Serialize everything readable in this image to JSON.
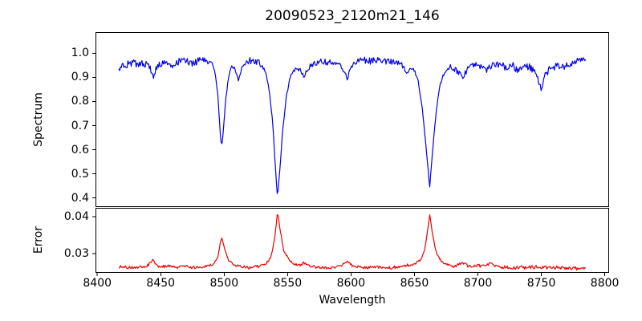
{
  "figure": {
    "title": "20090523_2120m21_146",
    "background_color": "#ffffff",
    "text_color": "#000000",
    "spine_color": "#000000"
  },
  "chart_data": [
    {
      "type": "line",
      "panel": "top",
      "title": "20090523_2120m21_146",
      "ylabel": "Spectrum",
      "series_name": "spectrum",
      "line_color": "#0000ee",
      "grid": false,
      "legend": "none",
      "xlim": [
        8398.6,
        8803.4
      ],
      "ylim": [
        0.362,
        1.088
      ],
      "yticks": [
        {
          "value": 0.4,
          "label": "0.4"
        },
        {
          "value": 0.5,
          "label": "0.5"
        },
        {
          "value": 0.6,
          "label": "0.6"
        },
        {
          "value": 0.7,
          "label": "0.7"
        },
        {
          "value": 0.8,
          "label": "0.8"
        },
        {
          "value": 0.9,
          "label": "0.9"
        },
        {
          "value": 1.0,
          "label": "1.0"
        }
      ],
      "data_x_range": [
        8417,
        8785
      ],
      "sample_step": 0.65,
      "noise_seed": 982451653,
      "continuum_level": 0.96,
      "absorption_lines": [
        {
          "wavelength": 8498,
          "min_flux": 0.61
        },
        {
          "wavelength": 8542,
          "min_flux": 0.4
        },
        {
          "wavelength": 8662,
          "min_flux": 0.45
        }
      ],
      "anchors": [
        [
          8417,
          0.93,
          0.012
        ],
        [
          8421,
          0.95,
          0.014
        ],
        [
          8425,
          0.958,
          0.016
        ],
        [
          8429,
          0.964,
          0.016
        ],
        [
          8433,
          0.952,
          0.016
        ],
        [
          8437,
          0.958,
          0.015
        ],
        [
          8441,
          0.948,
          0.013
        ],
        [
          8444,
          0.9,
          0.009
        ],
        [
          8446,
          0.932,
          0.011
        ],
        [
          8450,
          0.958,
          0.014
        ],
        [
          8454,
          0.964,
          0.014
        ],
        [
          8458,
          0.952,
          0.016
        ],
        [
          8462,
          0.96,
          0.015
        ],
        [
          8466,
          0.972,
          0.014
        ],
        [
          8470,
          0.97,
          0.014
        ],
        [
          8474,
          0.958,
          0.016
        ],
        [
          8478,
          0.965,
          0.015
        ],
        [
          8482,
          0.972,
          0.013
        ],
        [
          8486,
          0.97,
          0.012
        ],
        [
          8490,
          0.958,
          0.01
        ],
        [
          8493,
          0.92,
          0.008
        ],
        [
          8495,
          0.83,
          0.006
        ],
        [
          8497,
          0.66,
          0.004
        ],
        [
          8498,
          0.613,
          0.003
        ],
        [
          8499,
          0.655,
          0.004
        ],
        [
          8501,
          0.79,
          0.006
        ],
        [
          8503,
          0.89,
          0.008
        ],
        [
          8506,
          0.945,
          0.01
        ],
        [
          8509,
          0.928,
          0.01
        ],
        [
          8511,
          0.885,
          0.008
        ],
        [
          8513,
          0.928,
          0.01
        ],
        [
          8516,
          0.955,
          0.012
        ],
        [
          8520,
          0.97,
          0.014
        ],
        [
          8524,
          0.968,
          0.014
        ],
        [
          8528,
          0.958,
          0.012
        ],
        [
          8532,
          0.928,
          0.008
        ],
        [
          8535,
          0.868,
          0.006
        ],
        [
          8538,
          0.73,
          0.005
        ],
        [
          8540,
          0.56,
          0.004
        ],
        [
          8542,
          0.4,
          0.003
        ],
        [
          8544,
          0.52,
          0.004
        ],
        [
          8546,
          0.672,
          0.005
        ],
        [
          8549,
          0.82,
          0.006
        ],
        [
          8552,
          0.9,
          0.007
        ],
        [
          8556,
          0.938,
          0.009
        ],
        [
          8560,
          0.928,
          0.009
        ],
        [
          8563,
          0.9,
          0.008
        ],
        [
          8566,
          0.938,
          0.01
        ],
        [
          8570,
          0.958,
          0.012
        ],
        [
          8575,
          0.968,
          0.014
        ],
        [
          8580,
          0.962,
          0.014
        ],
        [
          8585,
          0.968,
          0.013
        ],
        [
          8590,
          0.958,
          0.012
        ],
        [
          8594,
          0.93,
          0.01
        ],
        [
          8597,
          0.895,
          0.008
        ],
        [
          8600,
          0.942,
          0.01
        ],
        [
          8605,
          0.968,
          0.014
        ],
        [
          8610,
          0.972,
          0.014
        ],
        [
          8615,
          0.968,
          0.014
        ],
        [
          8620,
          0.972,
          0.014
        ],
        [
          8625,
          0.968,
          0.014
        ],
        [
          8630,
          0.964,
          0.014
        ],
        [
          8635,
          0.968,
          0.012
        ],
        [
          8640,
          0.954,
          0.011
        ],
        [
          8644,
          0.92,
          0.009
        ],
        [
          8647,
          0.942,
          0.008
        ],
        [
          8650,
          0.928,
          0.007
        ],
        [
          8653,
          0.88,
          0.006
        ],
        [
          8656,
          0.78,
          0.005
        ],
        [
          8659,
          0.62,
          0.004
        ],
        [
          8662,
          0.445,
          0.003
        ],
        [
          8664,
          0.58,
          0.004
        ],
        [
          8667,
          0.75,
          0.005
        ],
        [
          8670,
          0.868,
          0.007
        ],
        [
          8674,
          0.928,
          0.009
        ],
        [
          8678,
          0.948,
          0.011
        ],
        [
          8683,
          0.93,
          0.012
        ],
        [
          8688,
          0.9,
          0.011
        ],
        [
          8692,
          0.938,
          0.012
        ],
        [
          8697,
          0.956,
          0.014
        ],
        [
          8702,
          0.948,
          0.015
        ],
        [
          8707,
          0.93,
          0.015
        ],
        [
          8712,
          0.948,
          0.015
        ],
        [
          8717,
          0.956,
          0.015
        ],
        [
          8722,
          0.94,
          0.016
        ],
        [
          8727,
          0.948,
          0.017
        ],
        [
          8732,
          0.93,
          0.017
        ],
        [
          8737,
          0.948,
          0.017
        ],
        [
          8742,
          0.938,
          0.016
        ],
        [
          8746,
          0.91,
          0.014
        ],
        [
          8750,
          0.85,
          0.011
        ],
        [
          8753,
          0.908,
          0.012
        ],
        [
          8757,
          0.938,
          0.014
        ],
        [
          8762,
          0.946,
          0.015
        ],
        [
          8767,
          0.94,
          0.015
        ],
        [
          8772,
          0.955,
          0.014
        ],
        [
          8777,
          0.965,
          0.013
        ],
        [
          8781,
          0.975,
          0.012
        ],
        [
          8785,
          0.972,
          0.011
        ]
      ]
    },
    {
      "type": "line",
      "panel": "bottom",
      "ylabel": "Error",
      "xlabel": "Wavelength",
      "series_name": "error",
      "line_color": "#ee0000",
      "grid": false,
      "legend": "none",
      "xlim": [
        8398.6,
        8803.4
      ],
      "ylim": [
        0.0248,
        0.0424
      ],
      "yticks": [
        {
          "value": 0.03,
          "label": "0.03"
        },
        {
          "value": 0.04,
          "label": "0.04"
        }
      ],
      "xticks": [
        {
          "value": 8400,
          "label": "8400"
        },
        {
          "value": 8450,
          "label": "8450"
        },
        {
          "value": 8500,
          "label": "8500"
        },
        {
          "value": 8550,
          "label": "8550"
        },
        {
          "value": 8600,
          "label": "8600"
        },
        {
          "value": 8650,
          "label": "8650"
        },
        {
          "value": 8700,
          "label": "8700"
        },
        {
          "value": 8750,
          "label": "8750"
        },
        {
          "value": 8800,
          "label": "8800"
        }
      ],
      "data_x_range": [
        8417,
        8785
      ],
      "sample_step": 0.65,
      "noise_seed": 69069,
      "baseline_level": 0.0265,
      "error_peaks": [
        {
          "wavelength": 8498,
          "max_error": 0.0345
        },
        {
          "wavelength": 8542,
          "max_error": 0.0412
        },
        {
          "wavelength": 8662,
          "max_error": 0.0405
        }
      ],
      "anchors": [
        [
          8417,
          0.0265,
          0.0004
        ],
        [
          8425,
          0.0262,
          0.0004
        ],
        [
          8433,
          0.0263,
          0.0004
        ],
        [
          8440,
          0.0267,
          0.0005
        ],
        [
          8444,
          0.0284,
          0.0003
        ],
        [
          8448,
          0.0262,
          0.0004
        ],
        [
          8455,
          0.0267,
          0.0004
        ],
        [
          8462,
          0.0262,
          0.0004
        ],
        [
          8470,
          0.0265,
          0.0004
        ],
        [
          8478,
          0.0262,
          0.0004
        ],
        [
          8486,
          0.0266,
          0.0003
        ],
        [
          8492,
          0.0272,
          0.0003
        ],
        [
          8495,
          0.0292,
          0.0002
        ],
        [
          8497,
          0.033,
          0.0002
        ],
        [
          8498,
          0.0345,
          0.0002
        ],
        [
          8500,
          0.0318,
          0.0002
        ],
        [
          8503,
          0.0284,
          0.0003
        ],
        [
          8507,
          0.0271,
          0.0003
        ],
        [
          8512,
          0.0265,
          0.0004
        ],
        [
          8520,
          0.0262,
          0.0004
        ],
        [
          8527,
          0.0265,
          0.0004
        ],
        [
          8533,
          0.0273,
          0.0003
        ],
        [
          8537,
          0.0292,
          0.0003
        ],
        [
          8540,
          0.0345,
          0.0002
        ],
        [
          8542,
          0.0412,
          0.0002
        ],
        [
          8544,
          0.0368,
          0.0002
        ],
        [
          8547,
          0.0308,
          0.0003
        ],
        [
          8551,
          0.0284,
          0.0003
        ],
        [
          8555,
          0.0272,
          0.0003
        ],
        [
          8560,
          0.0267,
          0.0004
        ],
        [
          8563,
          0.0276,
          0.0004
        ],
        [
          8567,
          0.0266,
          0.0004
        ],
        [
          8575,
          0.0263,
          0.0004
        ],
        [
          8584,
          0.0262,
          0.0004
        ],
        [
          8592,
          0.0266,
          0.0004
        ],
        [
          8597,
          0.0278,
          0.0003
        ],
        [
          8601,
          0.0267,
          0.0004
        ],
        [
          8610,
          0.0262,
          0.0004
        ],
        [
          8620,
          0.0263,
          0.0004
        ],
        [
          8630,
          0.0262,
          0.0004
        ],
        [
          8638,
          0.0264,
          0.0004
        ],
        [
          8645,
          0.0269,
          0.0004
        ],
        [
          8650,
          0.0272,
          0.0003
        ],
        [
          8655,
          0.0283,
          0.0003
        ],
        [
          8658,
          0.0308,
          0.0002
        ],
        [
          8660,
          0.0355,
          0.0002
        ],
        [
          8662,
          0.0405,
          0.0002
        ],
        [
          8664,
          0.0358,
          0.0002
        ],
        [
          8667,
          0.0304,
          0.0003
        ],
        [
          8671,
          0.028,
          0.0003
        ],
        [
          8675,
          0.0271,
          0.0003
        ],
        [
          8681,
          0.0266,
          0.0004
        ],
        [
          8688,
          0.0274,
          0.0004
        ],
        [
          8694,
          0.0264,
          0.0004
        ],
        [
          8701,
          0.0267,
          0.0005
        ],
        [
          8706,
          0.0266,
          0.0004
        ],
        [
          8710,
          0.0277,
          0.0004
        ],
        [
          8714,
          0.0265,
          0.0004
        ],
        [
          8722,
          0.0263,
          0.0005
        ],
        [
          8730,
          0.0262,
          0.0005
        ],
        [
          8738,
          0.0263,
          0.0005
        ],
        [
          8746,
          0.0264,
          0.0005
        ],
        [
          8754,
          0.0262,
          0.0005
        ],
        [
          8762,
          0.0263,
          0.0005
        ],
        [
          8770,
          0.0261,
          0.0005
        ],
        [
          8778,
          0.026,
          0.0005
        ],
        [
          8785,
          0.0258,
          0.0004
        ]
      ]
    }
  ]
}
